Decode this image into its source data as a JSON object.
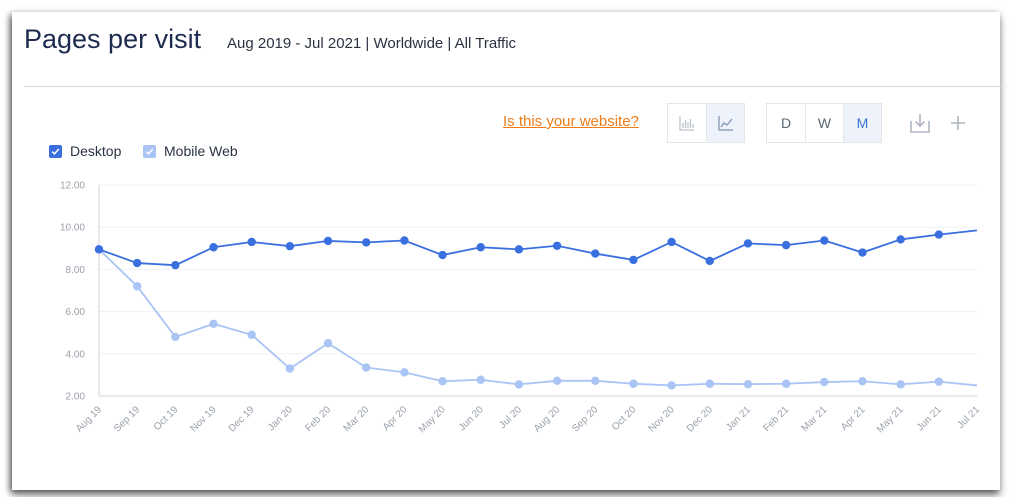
{
  "header": {
    "title": "Pages per visit",
    "subtitle": "Aug 2019 - Jul 2021 | Worldwide | All Traffic"
  },
  "toolbar": {
    "website_link": "Is this your website?",
    "chart_types": [
      {
        "icon": "bar-chart-icon",
        "active": false
      },
      {
        "icon": "line-chart-icon",
        "active": true
      }
    ],
    "granularity": [
      {
        "label": "D",
        "active": false
      },
      {
        "label": "W",
        "active": false
      },
      {
        "label": "M",
        "active": true
      }
    ],
    "download_icon": "download-icon",
    "add_icon": "plus-icon"
  },
  "legend": [
    {
      "label": "Desktop",
      "color": "#3a6fe0",
      "checked": true
    },
    {
      "label": "Mobile Web",
      "color": "#a9c4f5",
      "checked": true
    }
  ],
  "chart_data": {
    "type": "line",
    "title": "",
    "xlabel": "",
    "ylabel": "",
    "ylim": [
      2,
      12
    ],
    "yticks": [
      "2.00",
      "4.00",
      "6.00",
      "8.00",
      "10.00",
      "12.00"
    ],
    "grid": true,
    "x": [
      "Aug 19",
      "Sep 19",
      "Oct 19",
      "Nov 19",
      "Dec 19",
      "Jan 20",
      "Feb 20",
      "Mar 20",
      "Apr 20",
      "May 20",
      "Jun 20",
      "Jul 20",
      "Aug 20",
      "Sep 20",
      "Oct 20",
      "Nov 20",
      "Dec 20",
      "Jan 21",
      "Feb 21",
      "Mar 21",
      "Apr 21",
      "May 21",
      "Jun 21",
      "Jul 21"
    ],
    "series": [
      {
        "name": "Desktop",
        "color": "#3a6fe0",
        "values": [
          8.95,
          8.3,
          8.2,
          9.05,
          9.3,
          9.1,
          9.35,
          9.28,
          9.37,
          8.68,
          9.05,
          8.95,
          9.12,
          8.75,
          8.45,
          9.3,
          8.4,
          9.23,
          9.15,
          9.37,
          8.8,
          9.42,
          9.65,
          9.85
        ]
      },
      {
        "name": "Mobile Web",
        "color": "#a9c4f5",
        "values": [
          8.95,
          7.2,
          4.8,
          5.42,
          4.9,
          3.3,
          4.5,
          3.35,
          3.12,
          2.7,
          2.77,
          2.55,
          2.72,
          2.72,
          2.58,
          2.5,
          2.58,
          2.56,
          2.58,
          2.66,
          2.7,
          2.55,
          2.68,
          2.5
        ]
      }
    ]
  }
}
